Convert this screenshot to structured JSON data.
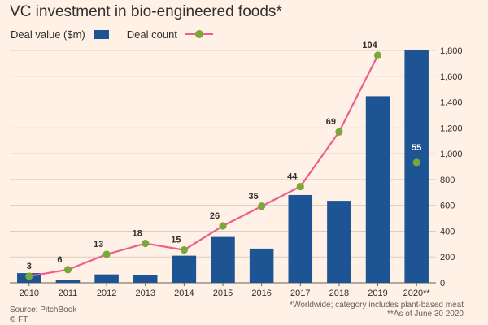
{
  "title": "VC investment in bio-engineered foods*",
  "legend": {
    "bar_label": "Deal value ($m)",
    "line_label": "Deal count"
  },
  "colors": {
    "background": "#fff1e5",
    "bar": "#1d5493",
    "line": "#eb5e8d",
    "marker": "#79a93a",
    "grid": "#d9cdc2",
    "text": "#33302e",
    "label_light": "#ffffff"
  },
  "chart_data": {
    "type": "bar",
    "categories": [
      "2010",
      "2011",
      "2012",
      "2013",
      "2014",
      "2015",
      "2016",
      "2017",
      "2018",
      "2019",
      "2020**"
    ],
    "series": [
      {
        "name": "Deal value ($m)",
        "type": "bar",
        "axis": "right",
        "values": [
          75,
          25,
          65,
          60,
          210,
          355,
          265,
          680,
          635,
          1445,
          1800
        ]
      },
      {
        "name": "Deal count",
        "type": "line",
        "axis": "left",
        "values": [
          3,
          6,
          13,
          18,
          15,
          26,
          35,
          44,
          69,
          104,
          55
        ],
        "labels": [
          "3",
          "6",
          "13",
          "18",
          "15",
          "26",
          "35",
          "44",
          "69",
          "104",
          "55"
        ]
      }
    ],
    "ylim": [
      0,
      1800
    ],
    "yticks": [
      0,
      200,
      400,
      600,
      800,
      1000,
      1200,
      1400,
      1600,
      1800
    ],
    "ytick_labels": [
      "0",
      "200",
      "400",
      "600",
      "800",
      "1,000",
      "1,200",
      "1,400",
      "1,600",
      "1,800"
    ],
    "count_scale_max": 104,
    "grid": true,
    "legend_position": "top-left"
  },
  "footer": {
    "source": "Source: PitchBook",
    "credit": "© FT",
    "note1": "*Worldwide; category includes plant-based meat",
    "note2": "**As of June 30 2020"
  }
}
